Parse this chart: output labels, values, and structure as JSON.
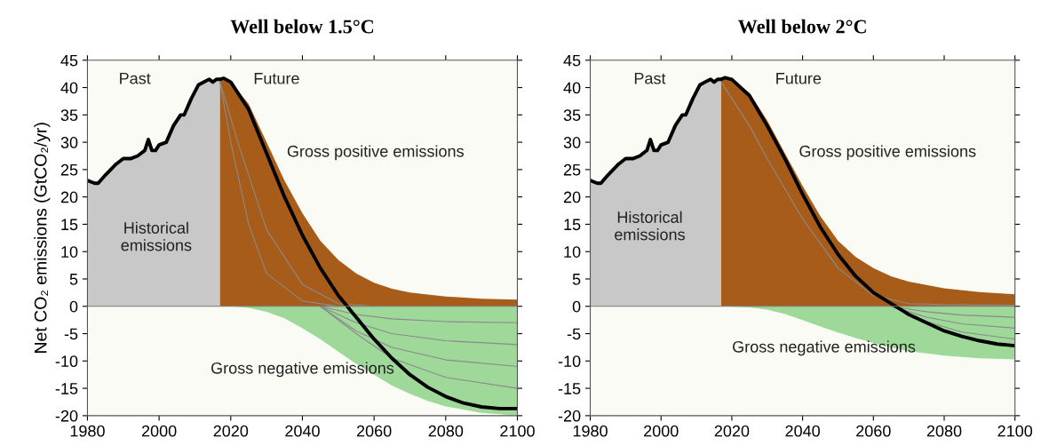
{
  "chart_data": [
    {
      "type": "area",
      "title": "Well below 1.5°C",
      "ylabel": "Net CO₂ emissions (GtCO₂/yr)",
      "xlim": [
        1980,
        2100
      ],
      "xticks": [
        1980,
        2000,
        2020,
        2040,
        2060,
        2080,
        2100
      ],
      "ylim": [
        -20,
        45
      ],
      "yticks": [
        -20,
        -15,
        -10,
        -5,
        0,
        5,
        10,
        15,
        20,
        25,
        30,
        35,
        40,
        45
      ],
      "ref_lines": [
        {
          "axis": "y",
          "value": 0,
          "color": "#777777"
        }
      ],
      "annotations": [
        "Past",
        "Future",
        "Historical\nemissions",
        "Gross positive emissions",
        "Gross negative emissions"
      ],
      "series": [
        {
          "type": "area",
          "color": "#c8c8c8",
          "x": [
            1980,
            1982,
            1983,
            1985,
            1988,
            1990,
            1992,
            1994,
            1996,
            1997,
            1998,
            1999,
            2000,
            2002,
            2004,
            2006,
            2007,
            2009,
            2011,
            2013,
            2014,
            2015,
            2016,
            2017
          ],
          "values": [
            23,
            22.5,
            22.5,
            24,
            26,
            27,
            27,
            27.5,
            28.5,
            30.5,
            28.5,
            28.5,
            29.5,
            30,
            33,
            35,
            35,
            38,
            40.5,
            41.2,
            41.5,
            41,
            41.5,
            41.5
          ]
        },
        {
          "type": "area",
          "color": "#a85c1a",
          "x": [
            2017,
            2020,
            2025,
            2030,
            2035,
            2040,
            2045,
            2050,
            2055,
            2060,
            2065,
            2070,
            2080,
            2090,
            2100
          ],
          "values": [
            41.5,
            41,
            37,
            30,
            23,
            17,
            12,
            8.5,
            6,
            4.3,
            3.2,
            2.5,
            1.8,
            1.4,
            1.2
          ]
        },
        {
          "type": "area",
          "color": "#9ed99a",
          "x": [
            2017,
            2020,
            2025,
            2030,
            2035,
            2040,
            2045,
            2050,
            2055,
            2060,
            2065,
            2070,
            2075,
            2080,
            2090,
            2100
          ],
          "values": [
            0,
            0,
            -0.3,
            -1,
            -2.2,
            -4,
            -6,
            -8.3,
            -10.5,
            -12.5,
            -14.5,
            -16,
            -17.3,
            -18.3,
            -19.5,
            -20
          ]
        },
        {
          "type": "line",
          "color": "#8a8a8a",
          "x": [
            2017,
            2020,
            2025,
            2030,
            2040,
            2050
          ],
          "values": [
            41,
            30,
            15,
            6,
            1,
            0
          ]
        },
        {
          "type": "line",
          "color": "#8a8a8a",
          "x": [
            2017,
            2022,
            2030,
            2040,
            2050,
            2060
          ],
          "values": [
            41,
            30,
            14,
            4,
            0.5,
            0
          ]
        },
        {
          "type": "line",
          "color": "#8a8a8a",
          "x": [
            2045,
            2055,
            2065,
            2080,
            2100
          ],
          "values": [
            0,
            -1.5,
            -2.3,
            -2.8,
            -3
          ]
        },
        {
          "type": "line",
          "color": "#8a8a8a",
          "x": [
            2045,
            2055,
            2065,
            2080,
            2100
          ],
          "values": [
            0,
            -3,
            -5,
            -6.3,
            -7
          ]
        },
        {
          "type": "line",
          "color": "#8a8a8a",
          "x": [
            2045,
            2055,
            2065,
            2080,
            2100
          ],
          "values": [
            0,
            -4.5,
            -7.5,
            -9.8,
            -11
          ]
        },
        {
          "type": "line",
          "color": "#8a8a8a",
          "x": [
            2045,
            2055,
            2065,
            2080,
            2100
          ],
          "values": [
            0,
            -5,
            -9.5,
            -13,
            -15
          ]
        },
        {
          "type": "line",
          "color": "#000000",
          "x": [
            1980,
            1982,
            1983,
            1985,
            1988,
            1990,
            1992,
            1994,
            1996,
            1997,
            1998,
            1999,
            2000,
            2002,
            2004,
            2006,
            2007,
            2009,
            2011,
            2013,
            2014,
            2015,
            2016,
            2017,
            2018,
            2020,
            2025,
            2030,
            2035,
            2040,
            2045,
            2050,
            2055,
            2060,
            2065,
            2070,
            2075,
            2080,
            2085,
            2090,
            2095,
            2100
          ],
          "values": [
            23,
            22.5,
            22.5,
            24,
            26,
            27,
            27,
            27.5,
            28.5,
            30.5,
            28.5,
            28.5,
            29.5,
            30,
            33,
            35,
            35,
            38,
            40.5,
            41.2,
            41.5,
            41,
            41.5,
            41.5,
            41.7,
            41,
            36,
            28,
            20,
            13,
            7,
            2,
            -2,
            -6,
            -9.5,
            -12.5,
            -14.8,
            -16.5,
            -17.7,
            -18.4,
            -18.7,
            -18.7
          ]
        }
      ]
    },
    {
      "type": "area",
      "title": "Well below 2°C",
      "xlim": [
        1980,
        2100
      ],
      "xticks": [
        1980,
        2000,
        2020,
        2040,
        2060,
        2080,
        2100
      ],
      "ylim": [
        -20,
        45
      ],
      "yticks": [
        -20,
        -15,
        -10,
        -5,
        0,
        5,
        10,
        15,
        20,
        25,
        30,
        35,
        40,
        45
      ],
      "ref_lines": [
        {
          "axis": "y",
          "value": 0,
          "color": "#777777"
        }
      ],
      "annotations": [
        "Past",
        "Future",
        "Historical\nemissions",
        "Gross positive emissions",
        "Gross negative emissions"
      ],
      "series": [
        {
          "type": "area",
          "color": "#c8c8c8",
          "x": [
            1980,
            1982,
            1983,
            1985,
            1988,
            1990,
            1992,
            1994,
            1996,
            1997,
            1998,
            1999,
            2000,
            2002,
            2004,
            2006,
            2007,
            2009,
            2011,
            2013,
            2014,
            2015,
            2016,
            2017
          ],
          "values": [
            23,
            22.5,
            22.5,
            24,
            26,
            27,
            27,
            27.5,
            28.5,
            30.5,
            28.5,
            28.5,
            29.5,
            30,
            33,
            35,
            35,
            38,
            40.5,
            41.2,
            41.5,
            41,
            41.5,
            41.5
          ]
        },
        {
          "type": "area",
          "color": "#a85c1a",
          "x": [
            2017,
            2020,
            2025,
            2030,
            2035,
            2040,
            2045,
            2050,
            2055,
            2060,
            2065,
            2070,
            2080,
            2090,
            2100
          ],
          "values": [
            41.5,
            41.5,
            39,
            34,
            28,
            22,
            16.5,
            12,
            9,
            7,
            5.5,
            4.5,
            3.3,
            2.6,
            2.2
          ]
        },
        {
          "type": "area",
          "color": "#9ed99a",
          "x": [
            2017,
            2025,
            2030,
            2035,
            2040,
            2045,
            2050,
            2055,
            2060,
            2065,
            2070,
            2080,
            2090,
            2100
          ],
          "values": [
            0,
            -0.2,
            -0.6,
            -1.4,
            -2.5,
            -3.7,
            -4.8,
            -5.8,
            -6.7,
            -7.5,
            -8.2,
            -9,
            -9.5,
            -9.7
          ]
        },
        {
          "type": "line",
          "color": "#8a8a8a",
          "x": [
            2017,
            2020,
            2025,
            2030,
            2040,
            2050,
            2060,
            2070,
            2080,
            2100
          ],
          "values": [
            41,
            38,
            33,
            27,
            16,
            7,
            2,
            0.5,
            0.3,
            0.2
          ]
        },
        {
          "type": "line",
          "color": "#8a8a8a",
          "x": [
            2065,
            2075,
            2085,
            2100
          ],
          "values": [
            0,
            -1,
            -1.6,
            -2
          ]
        },
        {
          "type": "line",
          "color": "#8a8a8a",
          "x": [
            2065,
            2075,
            2085,
            2100
          ],
          "values": [
            0,
            -2,
            -3.2,
            -4
          ]
        },
        {
          "type": "line",
          "color": "#8a8a8a",
          "x": [
            2065,
            2075,
            2085,
            2100
          ],
          "values": [
            0,
            -2.8,
            -4.7,
            -6
          ]
        },
        {
          "type": "line",
          "color": "#000000",
          "x": [
            1980,
            1982,
            1983,
            1985,
            1988,
            1990,
            1992,
            1994,
            1996,
            1997,
            1998,
            1999,
            2000,
            2002,
            2004,
            2006,
            2007,
            2009,
            2011,
            2013,
            2014,
            2015,
            2016,
            2017,
            2018,
            2020,
            2025,
            2030,
            2035,
            2040,
            2045,
            2050,
            2055,
            2060,
            2065,
            2070,
            2075,
            2080,
            2085,
            2090,
            2095,
            2100
          ],
          "values": [
            23,
            22.5,
            22.5,
            24,
            26,
            27,
            27,
            27.5,
            28.5,
            30.5,
            28.5,
            28.5,
            29.5,
            30,
            33,
            35,
            35,
            38,
            40.5,
            41.2,
            41.5,
            41,
            41.5,
            41.5,
            41.8,
            41.5,
            38.5,
            33,
            27,
            20.5,
            14.5,
            9.5,
            5.5,
            2.5,
            0.5,
            -1.5,
            -3,
            -4.5,
            -5.5,
            -6.3,
            -6.9,
            -7.2
          ]
        }
      ]
    }
  ]
}
